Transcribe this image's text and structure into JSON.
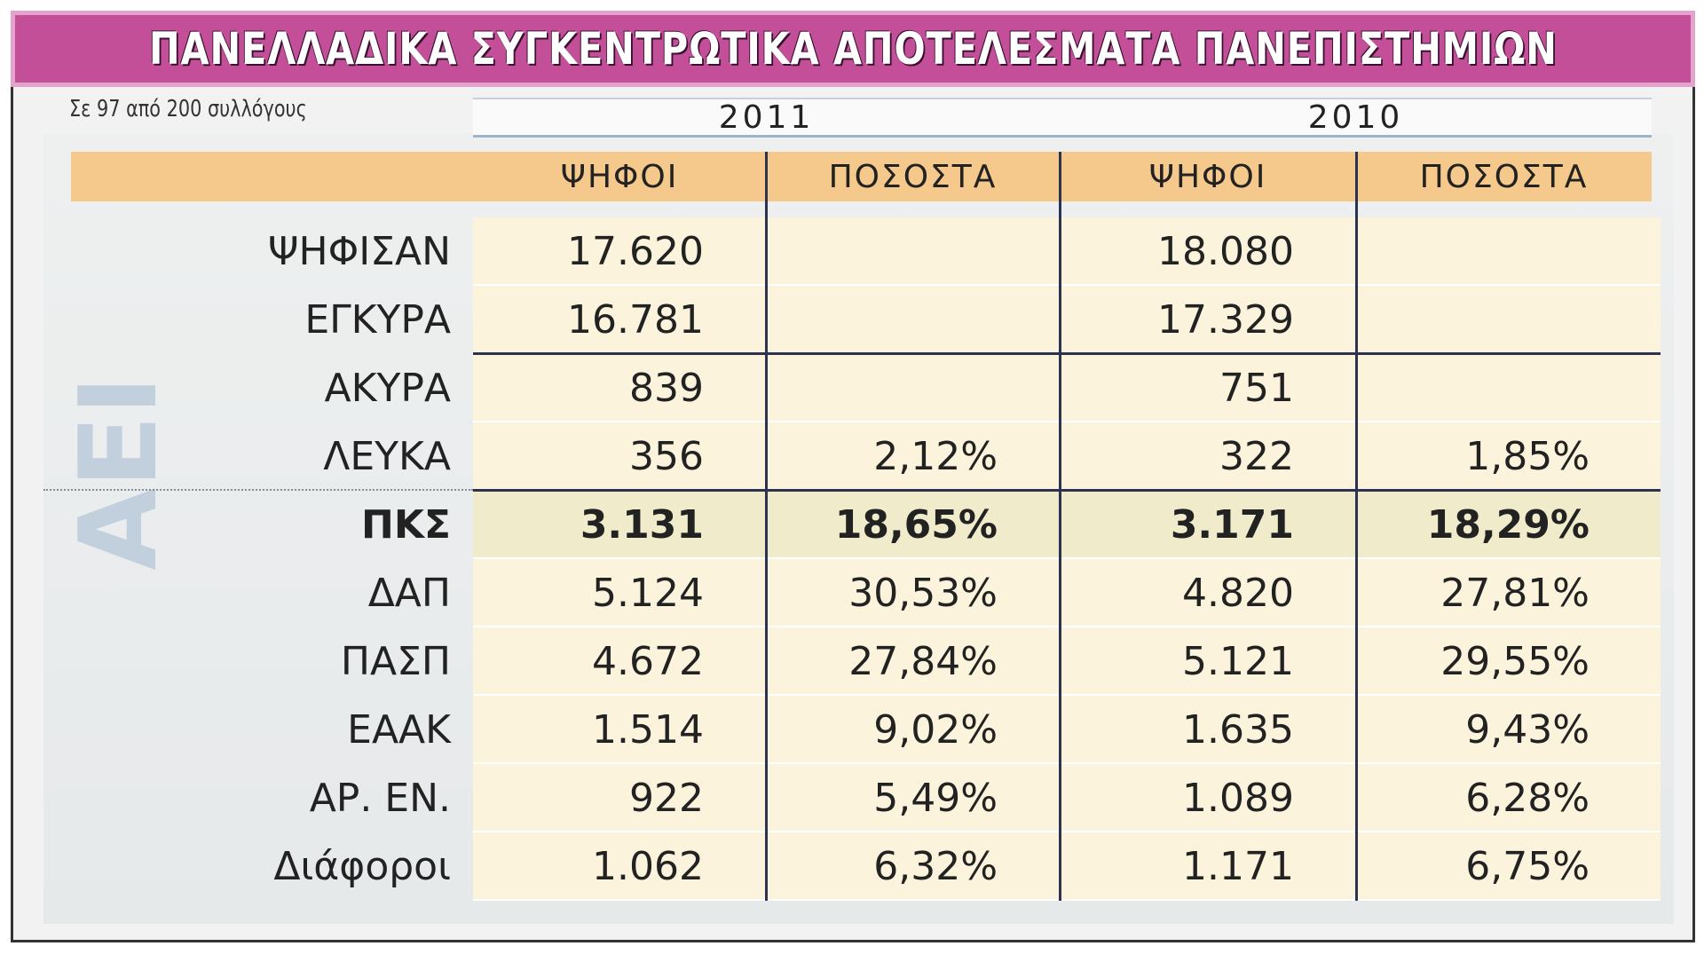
{
  "header": {
    "title": "ΠΑΝΕΛΛΑΔΙΚΑ ΣΥΓΚΕΝΤΡΩΤΙΚΑ ΑΠΟΤΕΛΕΣΜΑΤΑ ΠΑΝΕΠΙΣΤΗΜΙΩΝ",
    "subtitle": "Σε 97 από 200 συλλόγους",
    "side_label": "ΑΕΙ"
  },
  "table": {
    "years": [
      "2011",
      "2010"
    ],
    "columns": [
      "ΨΗΦΟΙ",
      "ΠΟΣΟΣΤΑ",
      "ΨΗΦΟΙ",
      "ΠΟΣΟΣΤΑ"
    ],
    "rows": [
      [
        "ΨΗΦΙΣΑΝ",
        "17.620",
        null,
        "18.080",
        null
      ],
      [
        "ΕΓΚΥΡΑ",
        "16.781",
        null,
        "17.329",
        null
      ],
      [
        "ΑΚΥΡΑ",
        "839",
        null,
        "751",
        null
      ],
      [
        "ΛΕΥΚΑ",
        "356",
        "2,12%",
        "322",
        "1,85%"
      ],
      [
        "ΠΚΣ",
        "3.131",
        "18,65%",
        "3.171",
        "18,29%"
      ],
      [
        "ΔΑΠ",
        "5.124",
        "30,53%",
        "4.820",
        "27,81%"
      ],
      [
        "ΠΑΣΠ",
        "4.672",
        "27,84%",
        "5.121",
        "29,55%"
      ],
      [
        "ΕΑΑΚ",
        "1.514",
        "9,02%",
        "1.635",
        "9,43%"
      ],
      [
        "ΑΡ. ΕΝ.",
        "922",
        "5,49%",
        "1.089",
        "6,28%"
      ],
      [
        "Διάφοροι",
        "1.062",
        "6,32%",
        "1.171",
        "6,75%"
      ]
    ]
  }
}
